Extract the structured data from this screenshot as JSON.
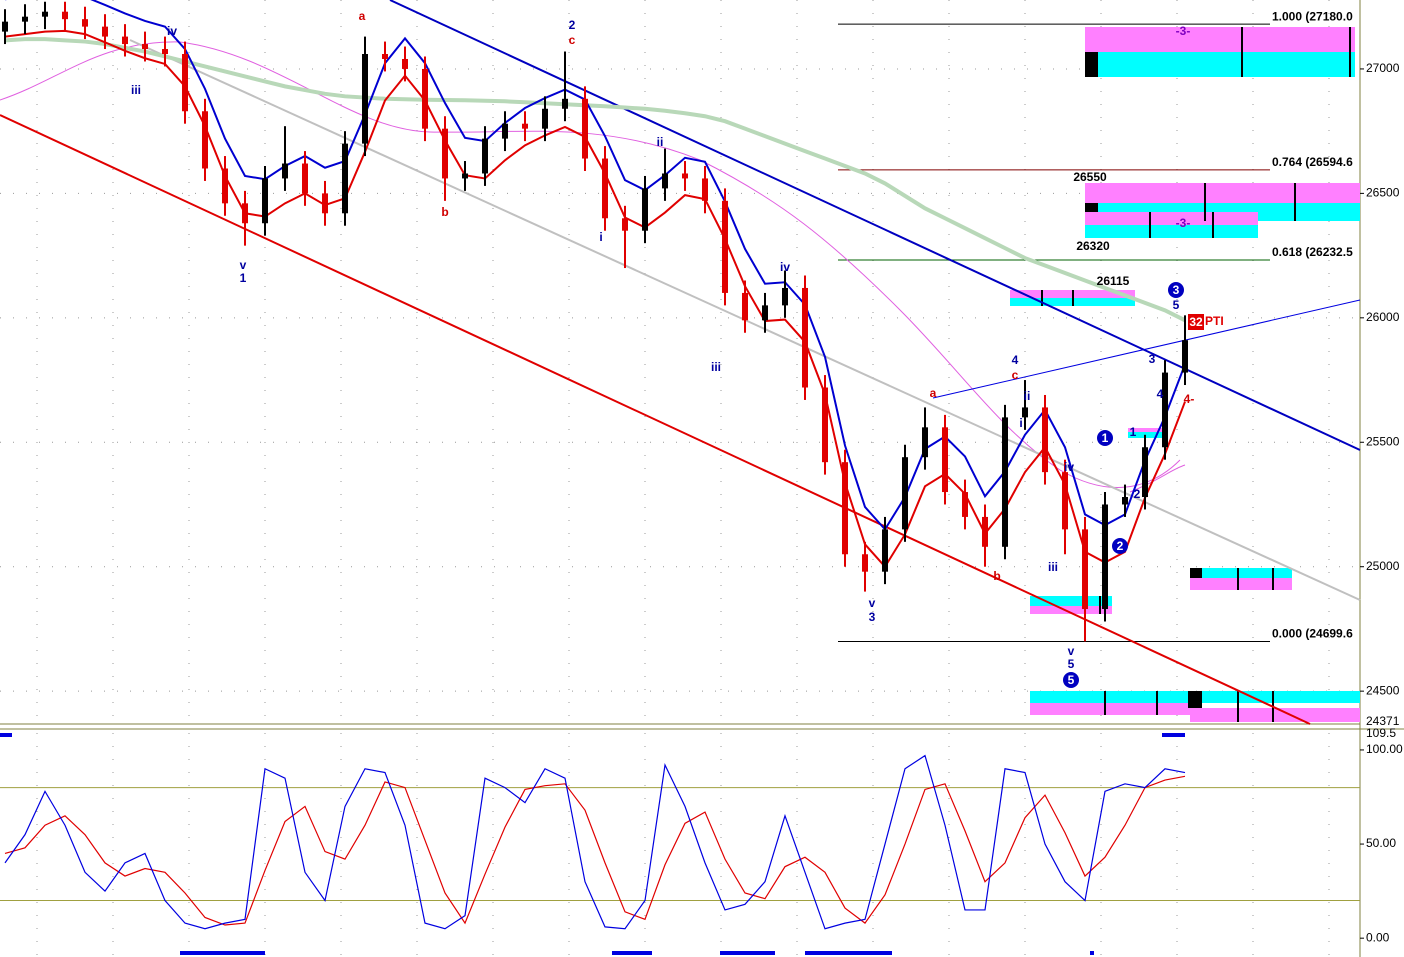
{
  "chart_data": [
    {
      "type": "candlestick",
      "open": [
        27150,
        27190,
        27210,
        27230,
        27200,
        27170,
        27130,
        27100,
        27080,
        27060,
        26830,
        26600,
        26460,
        26380,
        26560,
        26620,
        26500,
        26420,
        26700,
        27060,
        27040,
        27000,
        26760,
        26560,
        26580,
        26720,
        26780,
        26760,
        26840,
        26880,
        26640,
        26400,
        26350,
        26520,
        26580,
        26560,
        26470,
        26100,
        25990,
        26050,
        26120,
        25720,
        25420,
        25050,
        24980,
        25150,
        25440,
        25560,
        25300,
        25200,
        25080,
        25600,
        25640,
        25380,
        25150,
        24830,
        25250,
        25280,
        25480,
        25780
      ],
      "high": [
        27240,
        27260,
        27270,
        27270,
        27250,
        27220,
        27180,
        27150,
        27130,
        27110,
        26880,
        26650,
        26510,
        26610,
        26770,
        26670,
        26550,
        26750,
        27130,
        27110,
        27090,
        27050,
        26810,
        26630,
        26770,
        26830,
        26830,
        26890,
        27070,
        26930,
        26690,
        26450,
        26570,
        26680,
        26630,
        26610,
        26520,
        26150,
        26100,
        26190,
        26170,
        25770,
        25470,
        25100,
        25200,
        25490,
        25640,
        25610,
        25350,
        25250,
        25650,
        25750,
        25690,
        25430,
        25200,
        25300,
        25330,
        25530,
        25830,
        26010
      ],
      "low": [
        27100,
        27140,
        27160,
        27150,
        27120,
        27080,
        27050,
        27030,
        27010,
        26780,
        26550,
        26410,
        26290,
        26330,
        26510,
        26450,
        26370,
        26370,
        26650,
        26990,
        26950,
        26710,
        26470,
        26510,
        26530,
        26670,
        26710,
        26710,
        26790,
        26590,
        26350,
        26200,
        26300,
        26470,
        26510,
        26420,
        26050,
        25940,
        25940,
        26000,
        25670,
        25370,
        25000,
        24900,
        24930,
        25100,
        25390,
        25250,
        25150,
        25000,
        25030,
        25550,
        25330,
        25050,
        24700,
        24780,
        25200,
        25230,
        25430,
        25730
      ],
      "close": [
        27190,
        27210,
        27230,
        27200,
        27170,
        27130,
        27100,
        27080,
        27060,
        26830,
        26600,
        26460,
        26380,
        26560,
        26620,
        26500,
        26420,
        26700,
        27060,
        27040,
        27000,
        26760,
        26560,
        26580,
        26720,
        26780,
        26760,
        26840,
        26880,
        26640,
        26400,
        26350,
        26520,
        26580,
        26560,
        26470,
        26100,
        25990,
        26050,
        26120,
        25720,
        25420,
        25050,
        24980,
        25150,
        25440,
        25560,
        25300,
        25200,
        25080,
        25600,
        25640,
        25380,
        25150,
        24830,
        25250,
        25280,
        25480,
        25780,
        25910
      ],
      "up_color": "#000000",
      "down_color": "#e00000",
      "overlays": [
        {
          "color": "#b8d8b8",
          "values": [
            27115,
            27120,
            27120,
            27115,
            27110,
            27100,
            27085,
            27070,
            27050,
            27030,
            27010,
            26990,
            26970,
            26950,
            26930,
            26915,
            26900,
            26890,
            26885,
            26880,
            26878,
            26876,
            26875,
            26874,
            26872,
            26870,
            26866,
            26862,
            26858,
            26854,
            26850,
            26845,
            26840,
            26832,
            26822,
            26810,
            26790,
            26760,
            26730,
            26700,
            26670,
            26640,
            26610,
            26580,
            26540,
            26490,
            26440,
            26400,
            26360,
            26320,
            26280,
            26240,
            26210,
            26180,
            26150,
            26120,
            26090,
            26060,
            26030,
            25990
          ]
        },
        {
          "color": "#e00000",
          "values": [
            27130,
            27140,
            27150,
            27153,
            27140,
            27107,
            27073,
            27043,
            27020,
            26930,
            26770,
            26570,
            26420,
            26407,
            26460,
            26500,
            26453,
            26480,
            26667,
            26873,
            26973,
            26873,
            26713,
            26573,
            26560,
            26633,
            26693,
            26733,
            26767,
            26727,
            26580,
            26403,
            26363,
            26423,
            26493,
            26477,
            26317,
            26127,
            25987,
            25993,
            25903,
            25693,
            25337,
            25090,
            25000,
            25130,
            25323,
            25373,
            25293,
            25133,
            25233,
            25380,
            25480,
            25330,
            25060,
            25017,
            25060,
            25277,
            25453,
            25663
          ]
        },
        {
          "color": "#0000d0",
          "values": [
            27280,
            27290,
            27300,
            27303,
            27290,
            27257,
            27223,
            27193,
            27170,
            27080,
            26920,
            26720,
            26570,
            26557,
            26610,
            26650,
            26603,
            26630,
            26817,
            27023,
            27123,
            27023,
            26863,
            26723,
            26710,
            26783,
            26843,
            26883,
            26917,
            26877,
            26730,
            26553,
            26513,
            26573,
            26643,
            26627,
            26467,
            26277,
            26137,
            26143,
            26053,
            25843,
            25487,
            25240,
            25150,
            25280,
            25473,
            25523,
            25443,
            25283,
            25383,
            25530,
            25630,
            25480,
            25210,
            25167,
            25210,
            25427,
            25603,
            25813
          ]
        }
      ],
      "ylim": [
        24368,
        27277
      ],
      "yticks": [
        27000,
        26500,
        26000,
        25500,
        25000,
        24500
      ],
      "grid": true,
      "fib_levels": [
        {
          "value": 27180,
          "label": "1.000 (27180.0",
          "color": "#000000"
        },
        {
          "value": 26594.67,
          "label": "0.764 (26594.6",
          "color": "#800000"
        },
        {
          "value": 26232.57,
          "label": "0.618 (26232.5",
          "color": "#006000"
        },
        {
          "value": 24699.67,
          "label": "0.000 (24699.6",
          "color": "#000000"
        }
      ],
      "last_label": "24371",
      "wave_labels": [
        {
          "text": "iv",
          "color": "#0000a0"
        },
        {
          "text": "iii",
          "color": "#0000a0"
        },
        {
          "text": "v",
          "color": "#0000a0"
        },
        {
          "text": "1",
          "color": "#0000a0"
        },
        {
          "text": "a",
          "color": "#d00000"
        },
        {
          "text": "b",
          "color": "#d00000"
        },
        {
          "text": "2",
          "color": "#0000a0"
        },
        {
          "text": "c",
          "color": "#d00000"
        },
        {
          "text": "ii",
          "color": "#0000a0"
        },
        {
          "text": "i",
          "color": "#0000a0"
        },
        {
          "text": "iv",
          "color": "#0000a0"
        },
        {
          "text": "iii",
          "color": "#0000a0"
        },
        {
          "text": "v",
          "color": "#0000a0"
        },
        {
          "text": "3",
          "color": "#0000a0"
        },
        {
          "text": "a",
          "color": "#d00000"
        },
        {
          "text": "4",
          "color": "#0000a0"
        },
        {
          "text": "c",
          "color": "#d00000"
        },
        {
          "text": "ii",
          "color": "#0000a0"
        },
        {
          "text": "i",
          "color": "#0000a0"
        },
        {
          "text": "b",
          "color": "#d00000"
        },
        {
          "text": "iv",
          "color": "#0000a0"
        },
        {
          "text": "iii",
          "color": "#0000a0"
        },
        {
          "text": "v",
          "color": "#0000a0"
        },
        {
          "text": "5",
          "color": "#0000a0"
        },
        {
          "text": "1",
          "color": "#0000a0"
        },
        {
          "text": "2",
          "color": "#0000a0"
        },
        {
          "text": "3",
          "color": "#0000a0"
        },
        {
          "text": "4",
          "color": "#0000a0"
        },
        {
          "text": "5",
          "color": "#0000a0"
        },
        {
          "text": "4-",
          "color": "#d00000"
        }
      ],
      "circled_labels": [
        "1",
        "2",
        "3",
        "5"
      ],
      "zone_labels": [
        "26550",
        "26320",
        "26115",
        "-3-",
        "-3-"
      ],
      "pti_count": "32",
      "pti_label": "PTI"
    },
    {
      "type": "line",
      "series": [
        {
          "color": "#0000e0",
          "values": [
            40,
            55,
            78,
            60,
            35,
            25,
            40,
            45,
            20,
            8,
            5,
            8,
            10,
            90,
            85,
            35,
            20,
            70,
            90,
            88,
            60,
            8,
            5,
            12,
            85,
            80,
            72,
            90,
            85,
            30,
            6,
            5,
            20,
            92,
            70,
            40,
            15,
            18,
            30,
            65,
            35,
            5,
            8,
            10,
            50,
            90,
            97,
            60,
            15,
            15,
            90,
            88,
            50,
            30,
            20,
            78,
            82,
            80,
            90,
            88
          ]
        },
        {
          "color": "#e00000",
          "values": [
            45,
            48,
            60,
            65,
            55,
            40,
            33,
            37,
            35,
            24,
            11,
            7,
            8,
            36,
            62,
            70,
            46,
            42,
            60,
            83,
            80,
            52,
            24,
            8,
            34,
            59,
            79,
            81,
            82,
            68,
            40,
            14,
            10,
            39,
            61,
            67,
            42,
            24,
            21,
            38,
            43,
            35,
            16,
            8,
            23,
            50,
            79,
            82,
            57,
            30,
            40,
            64,
            76,
            56,
            33,
            43,
            60,
            80,
            84,
            86
          ]
        }
      ],
      "ylim": [
        -10,
        109
      ],
      "yticks": [
        {
          "value": 100,
          "label": "100.00"
        },
        {
          "value": 50,
          "label": "50.00"
        },
        {
          "value": 0,
          "label": "0.00"
        }
      ],
      "levels": [
        80,
        20
      ],
      "top_label": "109.5"
    }
  ]
}
